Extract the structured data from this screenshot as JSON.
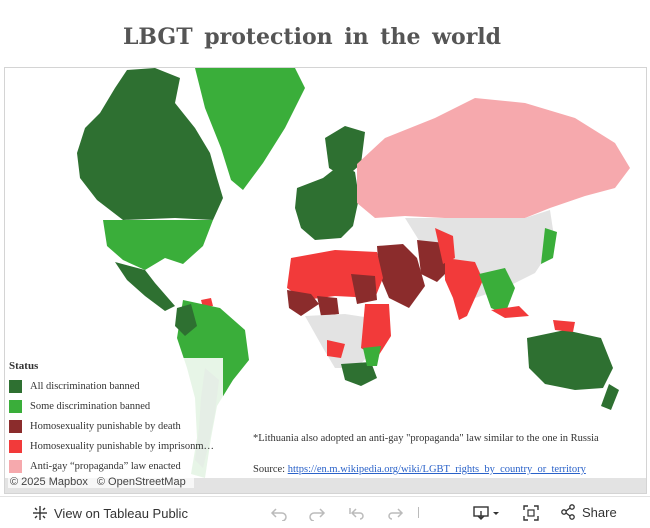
{
  "title": "LBGT protection in the world",
  "legend": {
    "title": "Status",
    "items": [
      {
        "label": "All discrimination banned",
        "color": "#2e7031"
      },
      {
        "label": "Some discrimination banned",
        "color": "#3aae3a"
      },
      {
        "label": "Homosexuality punishable by death",
        "color": "#8b2c2c"
      },
      {
        "label": "Homosexuality punishable by imprisonment",
        "color": "#f23a3a"
      },
      {
        "label": "Anti-gay “propaganda” law enacted",
        "color": "#f6a9ad"
      }
    ]
  },
  "note": "*Lithuania also adopted an anti-gay \"propaganda\" law similar to the one in Russia",
  "source": {
    "prefix": "Source:",
    "link_text": "https://en.m.wikipedia.org/wiki/LGBT_rights_by_country_or_territory"
  },
  "attribution": {
    "mapbox": "© 2025 Mapbox",
    "osm": "© OpenStreetMap"
  },
  "toolbar": {
    "view_label": "View on Tableau Public",
    "share_label": "Share"
  },
  "colors": {
    "no_data": "#e3e3e3"
  }
}
